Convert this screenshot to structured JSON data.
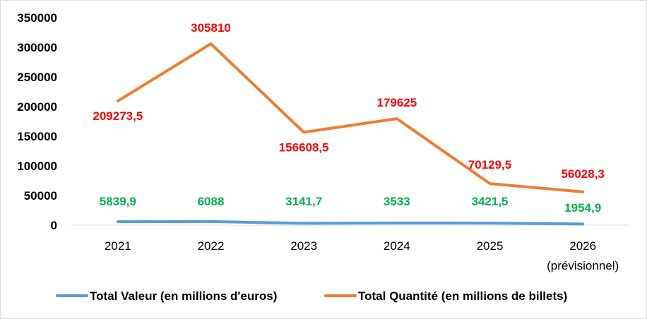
{
  "chart_data": {
    "type": "line",
    "categories": [
      "2021",
      "2022",
      "2023",
      "2024",
      "2025",
      "2026"
    ],
    "category_sublabels": [
      "",
      "",
      "",
      "",
      "",
      "(prévisionnel)"
    ],
    "ylim": [
      0,
      350000
    ],
    "yticks": [
      "0",
      "50000",
      "100000",
      "150000",
      "200000",
      "250000",
      "300000",
      "350000"
    ],
    "grid": false,
    "legend_position": "bottom",
    "series": [
      {
        "name": "Total Valeur (en millions d'euros)",
        "color": "#5b9bd5",
        "label_color": "#00b050",
        "values": [
          5839.9,
          6088,
          3141.7,
          3533,
          3421.5,
          1954.9
        ],
        "labels": [
          "5839,9",
          "6088",
          "3141,7",
          "3533",
          "3421,5",
          "1954,9"
        ]
      },
      {
        "name": "Total Quantité (en millions de billets)",
        "color": "#ed7d31",
        "label_color": "#ff0000",
        "values": [
          209273.5,
          305810,
          156608.5,
          179625,
          70129.5,
          56028.3
        ],
        "labels": [
          "209273,5",
          "305810",
          "156608,5",
          "179625",
          "70129,5",
          "56028,3"
        ]
      }
    ]
  }
}
